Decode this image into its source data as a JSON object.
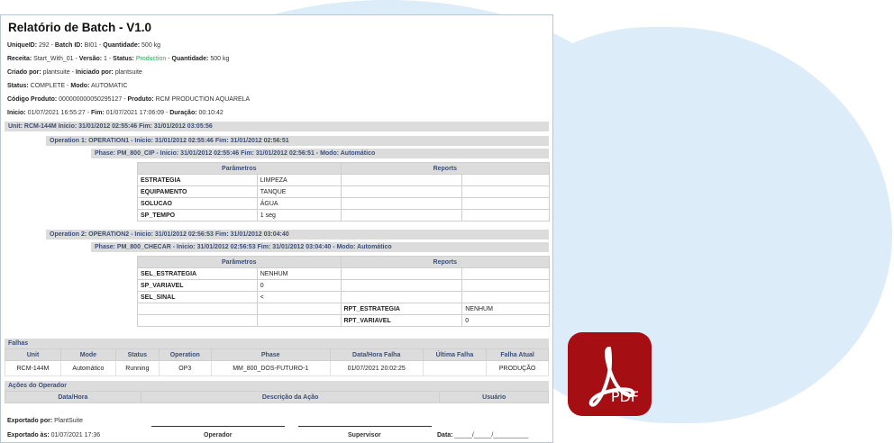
{
  "report": {
    "title": "Relatório de Batch - V1.0",
    "info_lines": [
      [
        {
          "k": "UniqueID:",
          "v": " 292"
        },
        {
          "k": "Batch ID:",
          "v": " BI01"
        },
        {
          "k": "Quantidade:",
          "v": " 500 kg"
        }
      ],
      [
        {
          "k": "Receita:",
          "v": " Start_With_01"
        },
        {
          "k": "Versão:",
          "v": " 1"
        },
        {
          "k": "Status:",
          "v": " Production",
          "green": true
        },
        {
          "k": "Quantidade:",
          "v": " 500 kg"
        }
      ],
      [
        {
          "k": "Criado por:",
          "v": " plantsuite"
        },
        {
          "k": "Iniciado por:",
          "v": " plantsuite"
        }
      ],
      [
        {
          "k": "Status:",
          "v": " COMPLETE"
        },
        {
          "k": "Modo:",
          "v": " AUTOMATIC"
        }
      ],
      [
        {
          "k": "Código Produto:",
          "v": " 000000000050295127"
        },
        {
          "k": "Produto:",
          "v": " RCM PRODUCTION AQUARELA"
        }
      ],
      [
        {
          "k": "Inicio:",
          "v": " 01/07/2021 16:55:27"
        },
        {
          "k": "Fim:",
          "v": " 01/07/2021 17:06:09"
        },
        {
          "k": "Duração:",
          "v": " 00:10:42"
        }
      ]
    ],
    "unit_bar": "Unit: RCM-144M  Inicio: 31/01/2012 02:55:46  Fim: 31/01/2012 03:05:56",
    "operations": [
      {
        "bar": "Operation 1: OPERATION1 - Inicio: 31/01/2012 02:55:46  Fim: 31/01/2012 02:56:51",
        "phase": "Phase: PM_800_CIP - Inicio: 31/01/2012 02:55:46  Fim: 31/01/2012 02:56:51 - Modo: Automático",
        "rows": [
          [
            "ESTRATEGIA",
            "LIMPEZA",
            "",
            ""
          ],
          [
            "EQUIPAMENTO",
            "TANQUE",
            "",
            ""
          ],
          [
            "SOLUCAO",
            "ÁGUA",
            "",
            ""
          ],
          [
            "SP_TEMPO",
            "1 seg",
            "",
            ""
          ]
        ]
      },
      {
        "bar": "Operation 2: OPERATION2 - Inicio: 31/01/2012 02:56:53  Fim: 31/01/2012 03:04:40",
        "phase": "Phase: PM_800_CHECAR - Inicio: 31/01/2012 02:56:53  Fim: 31/01/2012 03:04:40 - Modo: Automático",
        "rows": [
          [
            "SEL_ESTRATEGIA",
            "NENHUM",
            "",
            ""
          ],
          [
            "SP_VARIAVEL",
            "0",
            "",
            ""
          ],
          [
            "SEL_SINAL",
            "<",
            "",
            ""
          ],
          [
            "",
            "",
            "RPT_ESTRATEGIA",
            "NENHUM"
          ],
          [
            "",
            "",
            "RPT_VARIAVEL",
            "0"
          ]
        ]
      }
    ],
    "param_header": "Parâmetros",
    "reports_header": "Reports",
    "falhas": {
      "title": "Falhas",
      "columns": [
        "Unit",
        "Mode",
        "Status",
        "Operation",
        "Phase",
        "Data/Hora Falha",
        "Última Falha",
        "Falha Atual"
      ],
      "rows": [
        [
          "RCM-144M",
          "Automático",
          "Running",
          "OP3",
          "MM_800_DOS-FUTURO-1",
          "01/07/2021 20:02:25",
          "",
          "PRODUÇÃO"
        ]
      ]
    },
    "acoes": {
      "title": "Ações do Operador",
      "columns": [
        "Data/Hora",
        "Descrição da Ação",
        "Usuário"
      ]
    },
    "footer": {
      "exportado_por_label": "Exportado por:",
      "exportado_por": " PlantSuite",
      "exportado_as_label": "Exportado às:",
      "exportado_as": " 01/07/2021 17:36",
      "operador": "Operador",
      "supervisor": "Supervisor",
      "data_label": "Data:",
      "data_blank": " _____/_____/__________"
    }
  },
  "pdf_icon": {
    "label": "PDF",
    "color": "#a50f14"
  }
}
